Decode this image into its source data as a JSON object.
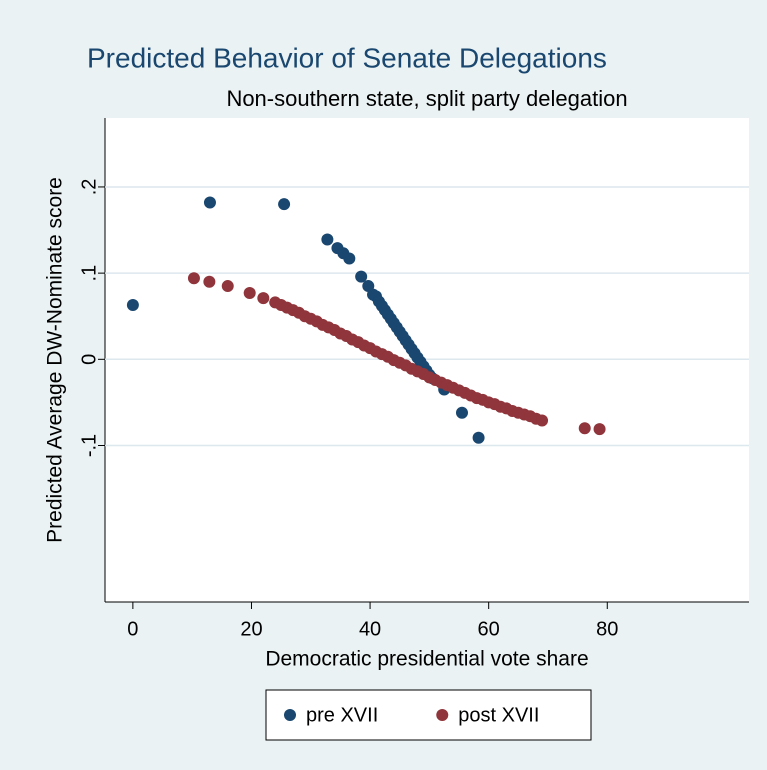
{
  "chart_data": {
    "type": "scatter",
    "title": "Predicted Behavior of Senate Delegations",
    "subtitle": "Non-southern state, split party delegation",
    "x_label": "Democratic presidential vote share",
    "y_label": "Predicted Average DW-Nominate score",
    "xlim": [
      -4.7,
      103.9
    ],
    "ylim": [
      -0.2816,
      0.28
    ],
    "xticks": [
      0,
      20,
      40,
      60,
      80
    ],
    "yticks": [
      {
        "value": -0.1,
        "label": "-.1"
      },
      {
        "value": 0,
        "label": "0"
      },
      {
        "value": 0.1,
        "label": ".1"
      },
      {
        "value": 0.2,
        "label": ".2"
      }
    ],
    "grid": true,
    "legend": "bottom",
    "series": [
      {
        "name": "pre XVII",
        "color": "#1a476f",
        "x": [
          0,
          13,
          25.5,
          32.8,
          34.5,
          35.5,
          36.5,
          38.5,
          39.7,
          40.5,
          41,
          41.5,
          42,
          42.5,
          43,
          43.5,
          44,
          44.5,
          45,
          45.5,
          46,
          46.5,
          47,
          47.5,
          48,
          48.5,
          49,
          49.5,
          50,
          50.5,
          52.5,
          55.5,
          58.3
        ],
        "values": [
          0.063,
          0.182,
          0.18,
          0.139,
          0.129,
          0.123,
          0.117,
          0.096,
          0.085,
          0.075,
          0.073,
          0.067,
          0.062,
          0.057,
          0.052,
          0.047,
          0.042,
          0.037,
          0.032,
          0.027,
          0.022,
          0.017,
          0.012,
          0.007,
          0.002,
          -0.003,
          -0.008,
          -0.013,
          -0.018,
          -0.022,
          -0.035,
          -0.062,
          -0.091
        ]
      },
      {
        "name": "post XVII",
        "color": "#90353b",
        "x": [
          10.3,
          12.9,
          16,
          19.7,
          22,
          24,
          25,
          26,
          27,
          28,
          29,
          30,
          31,
          32,
          33,
          34,
          35,
          36,
          37,
          38,
          39,
          40,
          41,
          42,
          43,
          44,
          45,
          46,
          47,
          48,
          49,
          50,
          51,
          52,
          53,
          54,
          55,
          56,
          57,
          58,
          59,
          60,
          61,
          62,
          63,
          64,
          65,
          66,
          67,
          68,
          69,
          76.2,
          78.7
        ],
        "values": [
          0.094,
          0.09,
          0.085,
          0.077,
          0.071,
          0.066,
          0.063,
          0.06,
          0.057,
          0.054,
          0.05,
          0.047,
          0.044,
          0.04,
          0.037,
          0.034,
          0.03,
          0.027,
          0.023,
          0.02,
          0.016,
          0.013,
          0.009,
          0.006,
          0.003,
          -0.001,
          -0.004,
          -0.007,
          -0.011,
          -0.014,
          -0.017,
          -0.021,
          -0.024,
          -0.027,
          -0.03,
          -0.033,
          -0.036,
          -0.039,
          -0.042,
          -0.045,
          -0.047,
          -0.05,
          -0.052,
          -0.055,
          -0.057,
          -0.06,
          -0.062,
          -0.064,
          -0.066,
          -0.069,
          -0.071,
          -0.08,
          -0.081
        ]
      }
    ]
  }
}
